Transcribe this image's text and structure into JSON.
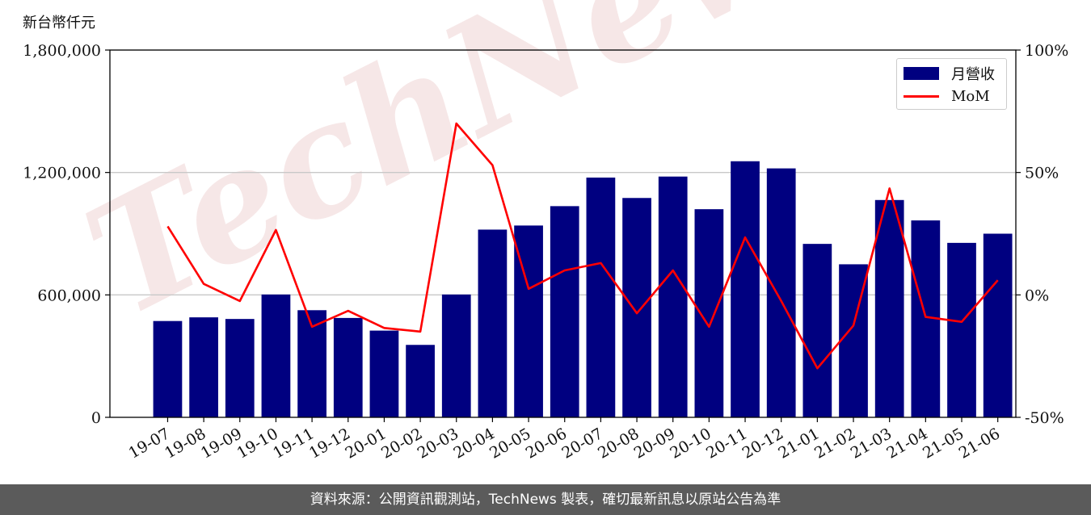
{
  "chart_data": {
    "type": "bar",
    "unit_label": "新台幣仟元",
    "categories": [
      "19-07",
      "19-08",
      "19-09",
      "19-10",
      "19-11",
      "19-12",
      "20-01",
      "20-02",
      "20-03",
      "20-04",
      "20-05",
      "20-06",
      "20-07",
      "20-08",
      "20-09",
      "20-10",
      "20-11",
      "20-12",
      "21-01",
      "21-02",
      "21-03",
      "21-04",
      "21-05",
      "21-06"
    ],
    "series": [
      {
        "name": "月營收",
        "axis": "left",
        "type": "bar",
        "color": "#000080",
        "values": [
          472000,
          490000,
          482000,
          602000,
          525000,
          487000,
          425000,
          355000,
          602000,
          920000,
          940000,
          1035000,
          1175000,
          1075000,
          1180000,
          1020000,
          1255000,
          1220000,
          850000,
          750000,
          1065000,
          965000,
          855000,
          900000
        ]
      },
      {
        "name": "MoM",
        "axis": "right",
        "type": "line",
        "color": "#ff0000",
        "values": [
          28.0,
          4.5,
          -2.5,
          26.5,
          -13.0,
          -6.5,
          -13.5,
          -15.0,
          70.0,
          53.0,
          2.5,
          10.0,
          13.0,
          -7.5,
          10.0,
          -13.0,
          23.5,
          -2.5,
          -30.0,
          -12.5,
          43.5,
          -9.0,
          -11.0,
          6.0
        ]
      }
    ],
    "y_left": {
      "lim": [
        0,
        1800000
      ],
      "ticks": [
        "0",
        "600,000",
        "1,200,000",
        "1,800,000"
      ],
      "tick_values": [
        0,
        600000,
        1200000,
        1800000
      ]
    },
    "y_right": {
      "lim": [
        -50,
        100
      ],
      "ticks": [
        "-50%",
        "0%",
        "50%",
        "100%"
      ],
      "tick_values": [
        -50,
        0,
        50,
        100
      ]
    },
    "grid": "horizontal",
    "legend_placement": "top-right"
  },
  "watermark": "TechNews",
  "footer": {
    "text": "資料來源：公開資訊觀測站，TechNews 製表，確切最新訊息以原站公告為準"
  }
}
